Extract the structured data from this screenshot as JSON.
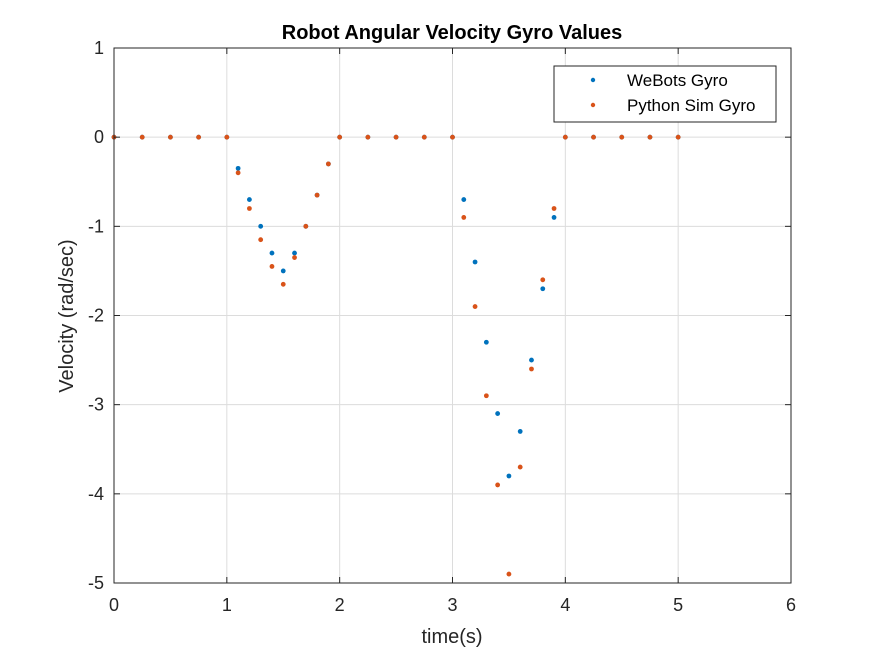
{
  "chart_data": {
    "type": "scatter",
    "title": "Robot Angular Velocity Gyro Values",
    "xlabel": "time(s)",
    "ylabel": "Velocity (rad/sec)",
    "xlim": [
      0,
      6
    ],
    "ylim": [
      -5,
      1
    ],
    "xticks": [
      0,
      1,
      2,
      3,
      4,
      5,
      6
    ],
    "yticks": [
      1,
      0,
      -1,
      -2,
      -3,
      -4,
      -5
    ],
    "grid": true,
    "legend_position": "top-right",
    "series": [
      {
        "name": "WeBots Gyro",
        "color": "#0072BD",
        "points": [
          [
            0,
            0
          ],
          [
            0.25,
            0
          ],
          [
            0.5,
            0
          ],
          [
            0.75,
            0
          ],
          [
            1.0,
            0
          ],
          [
            1.1,
            -0.35
          ],
          [
            1.2,
            -0.7
          ],
          [
            1.3,
            -1.0
          ],
          [
            1.4,
            -1.3
          ],
          [
            1.5,
            -1.5
          ],
          [
            1.6,
            -1.3
          ],
          [
            1.7,
            -1.0
          ],
          [
            1.8,
            -0.65
          ],
          [
            1.9,
            -0.3
          ],
          [
            2.0,
            0
          ],
          [
            2.25,
            0
          ],
          [
            2.5,
            0
          ],
          [
            2.75,
            0
          ],
          [
            3.0,
            0
          ],
          [
            3.1,
            -0.7
          ],
          [
            3.2,
            -1.4
          ],
          [
            3.3,
            -2.3
          ],
          [
            3.4,
            -3.1
          ],
          [
            3.5,
            -3.8
          ],
          [
            3.6,
            -3.3
          ],
          [
            3.7,
            -2.5
          ],
          [
            3.8,
            -1.7
          ],
          [
            3.9,
            -0.9
          ],
          [
            4.0,
            0
          ],
          [
            4.25,
            0
          ],
          [
            4.5,
            0
          ],
          [
            4.75,
            0
          ],
          [
            5.0,
            0
          ]
        ]
      },
      {
        "name": "Python Sim Gyro",
        "color": "#D95319",
        "points": [
          [
            0,
            0
          ],
          [
            0.25,
            0
          ],
          [
            0.5,
            0
          ],
          [
            0.75,
            0
          ],
          [
            1.0,
            0
          ],
          [
            1.1,
            -0.4
          ],
          [
            1.2,
            -0.8
          ],
          [
            1.3,
            -1.15
          ],
          [
            1.4,
            -1.45
          ],
          [
            1.5,
            -1.65
          ],
          [
            1.6,
            -1.35
          ],
          [
            1.7,
            -1.0
          ],
          [
            1.8,
            -0.65
          ],
          [
            1.9,
            -0.3
          ],
          [
            2.0,
            0
          ],
          [
            2.25,
            0
          ],
          [
            2.5,
            0
          ],
          [
            2.75,
            0
          ],
          [
            3.0,
            0
          ],
          [
            3.1,
            -0.9
          ],
          [
            3.2,
            -1.9
          ],
          [
            3.3,
            -2.9
          ],
          [
            3.4,
            -3.9
          ],
          [
            3.5,
            -4.9
          ],
          [
            3.6,
            -3.7
          ],
          [
            3.7,
            -2.6
          ],
          [
            3.8,
            -1.6
          ],
          [
            3.9,
            -0.8
          ],
          [
            4.0,
            0
          ],
          [
            4.25,
            0
          ],
          [
            4.5,
            0
          ],
          [
            4.75,
            0
          ],
          [
            5.0,
            0
          ]
        ]
      }
    ]
  }
}
